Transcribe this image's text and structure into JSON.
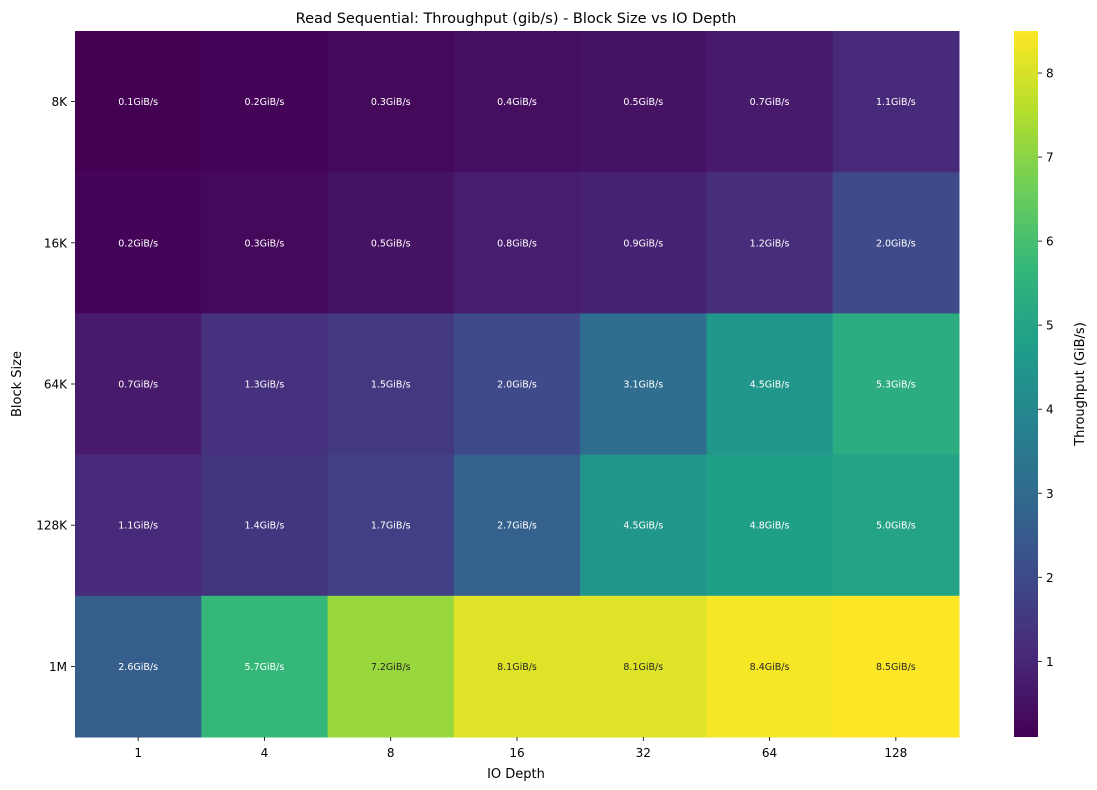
{
  "chart_data": {
    "type": "heatmap",
    "title": "Read Sequential: Throughput (gib/s) - Block Size vs IO Depth",
    "xlabel": "IO Depth",
    "ylabel": "Block Size",
    "x_categories": [
      "1",
      "4",
      "8",
      "16",
      "32",
      "64",
      "128"
    ],
    "y_categories": [
      "8K",
      "16K",
      "64K",
      "128K",
      "1M"
    ],
    "values": [
      [
        0.1,
        0.2,
        0.3,
        0.4,
        0.5,
        0.7,
        1.1
      ],
      [
        0.2,
        0.3,
        0.5,
        0.8,
        0.9,
        1.2,
        2.0
      ],
      [
        0.7,
        1.3,
        1.5,
        2.0,
        3.1,
        4.5,
        5.3
      ],
      [
        1.1,
        1.4,
        1.7,
        2.7,
        4.5,
        4.8,
        5.0
      ],
      [
        2.6,
        5.7,
        7.2,
        8.1,
        8.1,
        8.4,
        8.5
      ]
    ],
    "cell_labels": [
      [
        "0.1GiB/s",
        "0.2GiB/s",
        "0.3GiB/s",
        "0.4GiB/s",
        "0.5GiB/s",
        "0.7GiB/s",
        "1.1GiB/s"
      ],
      [
        "0.2GiB/s",
        "0.3GiB/s",
        "0.5GiB/s",
        "0.8GiB/s",
        "0.9GiB/s",
        "1.2GiB/s",
        "2.0GiB/s"
      ],
      [
        "0.7GiB/s",
        "1.3GiB/s",
        "1.5GiB/s",
        "2.0GiB/s",
        "3.1GiB/s",
        "4.5GiB/s",
        "5.3GiB/s"
      ],
      [
        "1.1GiB/s",
        "1.4GiB/s",
        "1.7GiB/s",
        "2.7GiB/s",
        "4.5GiB/s",
        "4.8GiB/s",
        "5.0GiB/s"
      ],
      [
        "2.6GiB/s",
        "5.7GiB/s",
        "7.2GiB/s",
        "8.1GiB/s",
        "8.1GiB/s",
        "8.4GiB/s",
        "8.5GiB/s"
      ]
    ],
    "colorbar": {
      "label": "Throughput (GiB/s)",
      "range": [
        0.1,
        8.5
      ],
      "ticks": [
        "1",
        "2",
        "3",
        "4",
        "5",
        "6",
        "7",
        "8"
      ],
      "colormap": "viridis"
    },
    "colormap_stops": [
      "#440154",
      "#482878",
      "#3e4989",
      "#31688e",
      "#26828e",
      "#1f9e89",
      "#35b779",
      "#6ece58",
      "#b5de2b",
      "#fde725"
    ],
    "text_colors": {
      "dark_cells": "#ffffff",
      "light_cells": "#262626"
    },
    "grid": false
  }
}
